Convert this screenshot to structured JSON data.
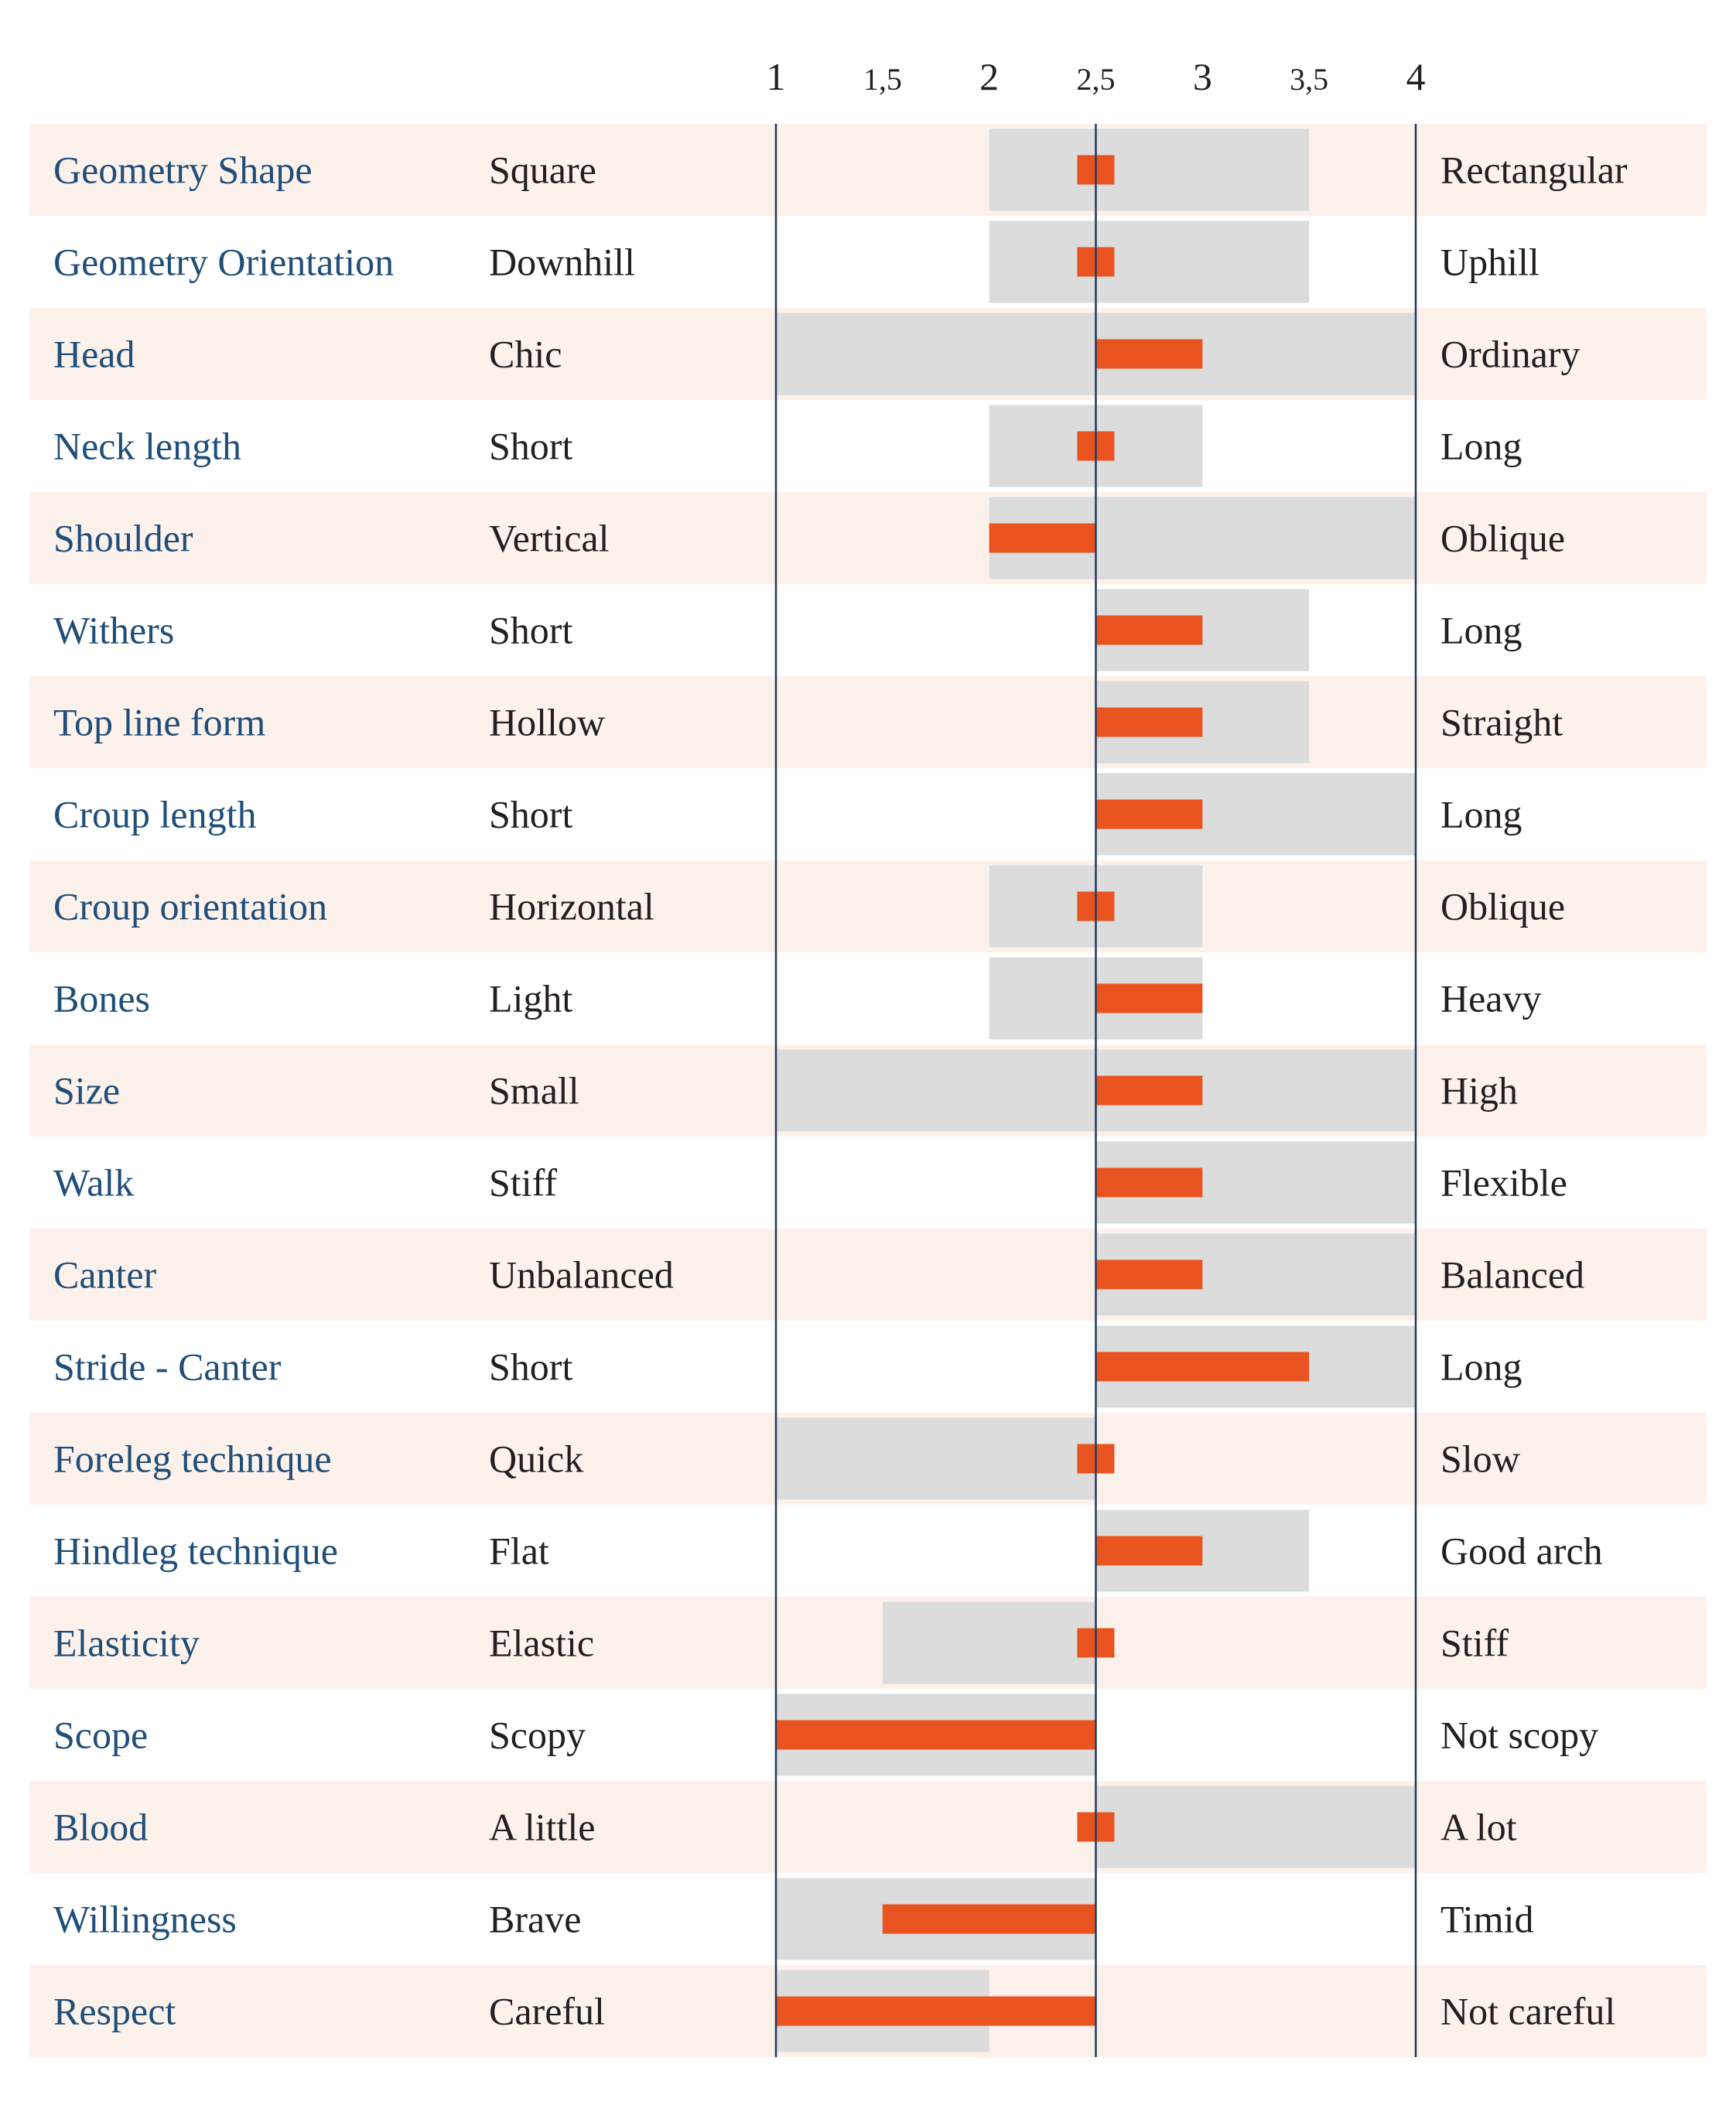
{
  "chart_data": {
    "type": "bar",
    "x_axis": {
      "range": [
        1,
        4
      ],
      "ticks": [
        {
          "value": 1,
          "label": "1"
        },
        {
          "value": 1.5,
          "label": "1,5"
        },
        {
          "value": 2,
          "label": "2"
        },
        {
          "value": 2.5,
          "label": "2,5"
        },
        {
          "value": 3,
          "label": "3"
        },
        {
          "value": 3.5,
          "label": "3,5"
        },
        {
          "value": 4,
          "label": "4"
        }
      ],
      "reference_line": 2.5
    },
    "colors": {
      "row_stripe": "#fdf1ec",
      "range_band": "#dcdcdc",
      "value_bar": "#e8531f",
      "axis_line": "#1f3a5f",
      "trait_text": "#1f4e79",
      "end_text": "#231f20"
    },
    "rows": [
      {
        "trait": "Geometry Shape",
        "low": "Square",
        "high": "Rectangular",
        "range": [
          2,
          3.5
        ],
        "value": 2.5
      },
      {
        "trait": "Geometry Orientation",
        "low": "Downhill",
        "high": "Uphill",
        "range": [
          2,
          3.5
        ],
        "value": 2.5
      },
      {
        "trait": "Head",
        "low": "Chic",
        "high": "Ordinary",
        "range": [
          1,
          4
        ],
        "value": 3
      },
      {
        "trait": "Neck length",
        "low": "Short",
        "high": "Long",
        "range": [
          2,
          3
        ],
        "value": 2.5
      },
      {
        "trait": "Shoulder",
        "low": "Vertical",
        "high": "Oblique",
        "range": [
          2,
          4
        ],
        "value": 2
      },
      {
        "trait": "Withers",
        "low": "Short",
        "high": "Long",
        "range": [
          2.5,
          3.5
        ],
        "value": 3
      },
      {
        "trait": "Top line form",
        "low": "Hollow",
        "high": "Straight",
        "range": [
          2.5,
          3.5
        ],
        "value": 3
      },
      {
        "trait": "Croup length",
        "low": "Short",
        "high": "Long",
        "range": [
          2.5,
          4
        ],
        "value": 3
      },
      {
        "trait": "Croup orientation",
        "low": "Horizontal",
        "high": "Oblique",
        "range": [
          2,
          3
        ],
        "value": 2.5
      },
      {
        "trait": "Bones",
        "low": "Light",
        "high": "Heavy",
        "range": [
          2,
          3
        ],
        "value": 3
      },
      {
        "trait": "Size",
        "low": "Small",
        "high": "High",
        "range": [
          1,
          4
        ],
        "value": 3
      },
      {
        "trait": "Walk",
        "low": "Stiff",
        "high": "Flexible",
        "range": [
          2.5,
          4
        ],
        "value": 3
      },
      {
        "trait": "Canter",
        "low": "Unbalanced",
        "high": "Balanced",
        "range": [
          2.5,
          4
        ],
        "value": 3
      },
      {
        "trait": "Stride - Canter",
        "low": "Short",
        "high": "Long",
        "range": [
          2.5,
          4
        ],
        "value": 3.5
      },
      {
        "trait": "Foreleg technique",
        "low": "Quick",
        "high": "Slow",
        "range": [
          1,
          2.5
        ],
        "value": 2.5
      },
      {
        "trait": "Hindleg technique",
        "low": "Flat",
        "high": "Good arch",
        "range": [
          2.5,
          3.5
        ],
        "value": 3
      },
      {
        "trait": "Elasticity",
        "low": "Elastic",
        "high": "Stiff",
        "range": [
          1.5,
          2.5
        ],
        "value": 2.5
      },
      {
        "trait": "Scope",
        "low": "Scopy",
        "high": "Not scopy",
        "range": [
          1,
          2.5
        ],
        "value": 1
      },
      {
        "trait": "Blood",
        "low": "A little",
        "high": "A lot",
        "range": [
          2.5,
          4
        ],
        "value": 2.5
      },
      {
        "trait": "Willingness",
        "low": "Brave",
        "high": "Timid",
        "range": [
          1,
          2.5
        ],
        "value": 1.5
      },
      {
        "trait": "Respect",
        "low": "Careful",
        "high": "Not careful",
        "range": [
          1,
          2
        ],
        "value": 1
      }
    ]
  }
}
